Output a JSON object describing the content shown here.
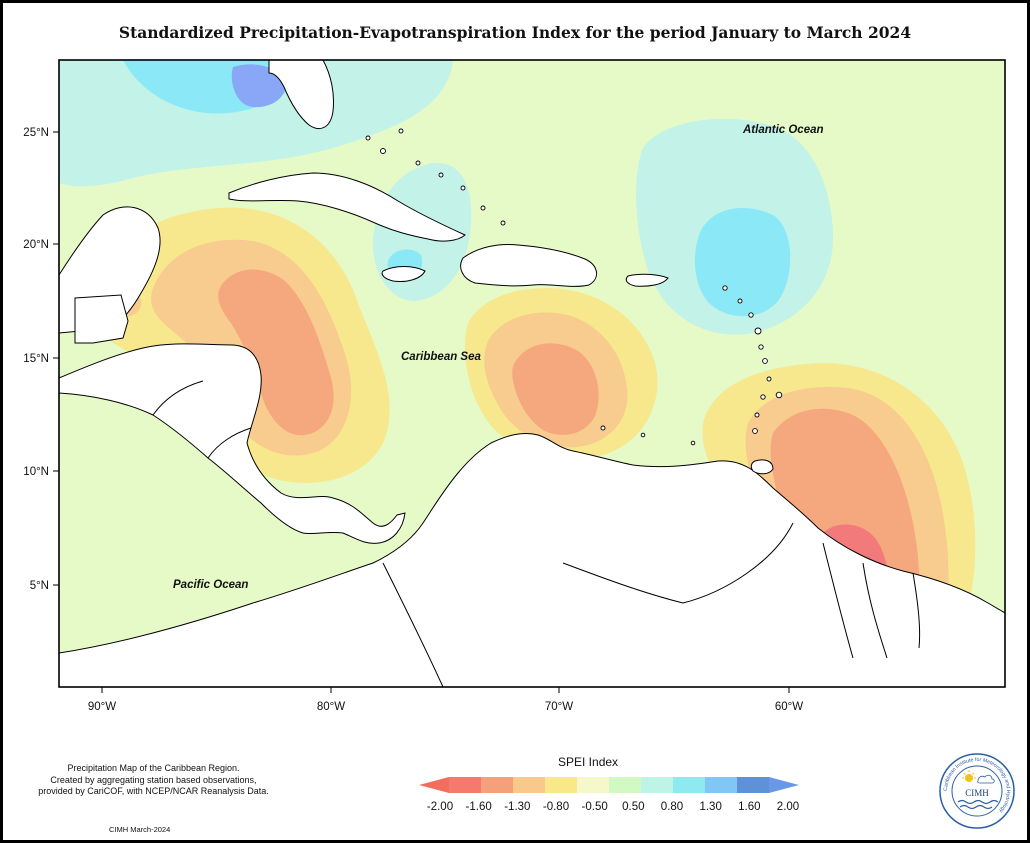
{
  "title": "Standardized Precipitation-Evapotranspiration Index for the period January to March 2024",
  "ocean_labels": {
    "atlantic": "Atlantic Ocean",
    "caribbean": "Caribbean Sea",
    "pacific": "Pacific Ocean"
  },
  "axis": {
    "lat_ticks": [
      "25°N",
      "20°N",
      "15°N",
      "10°N",
      "5°N"
    ],
    "lon_ticks": [
      "90°W",
      "80°W",
      "70°W",
      "60°W"
    ]
  },
  "legend": {
    "title": "SPEI Index",
    "ticks": [
      "-2.00",
      "-1.60",
      "-1.30",
      "-0.80",
      "-0.50",
      "0.50",
      "0.80",
      "1.30",
      "1.60",
      "2.00"
    ],
    "colors": [
      "#f47a6e",
      "#f4a07a",
      "#f8c88c",
      "#f8e88a",
      "#f6f8cc",
      "#d2f8c4",
      "#bdf4e6",
      "#8eeaf0",
      "#82c6f6",
      "#5e92d6"
    ],
    "arrow_left_color": "#f26d5c",
    "arrow_right_color": "#6a98e8"
  },
  "colors": {
    "background_field": "#e6fac8",
    "land": "#ffffff",
    "deficit_strong": "#f27a7a",
    "deficit": "#f5a77e",
    "moderate_dry": "#f8cb8e",
    "mild_dry": "#f7e88d",
    "near_normal": "#e6fac8",
    "mild_wet": "#c2f2e8",
    "wet": "#8be8f6",
    "very_wet": "#8aa6f6"
  },
  "footnote": {
    "line1": "Precipitation Map of the Caribbean Region.",
    "line2": "Created by aggregating station based observations,",
    "line3": "provided by CariCOF, with NCEP/NCAR Reanalysis Data."
  },
  "credit": "CIMH March-2024",
  "logo": {
    "acronym": "CIMH",
    "ring_text": "Caribbean Institute for Meteorology and Hydrology"
  }
}
